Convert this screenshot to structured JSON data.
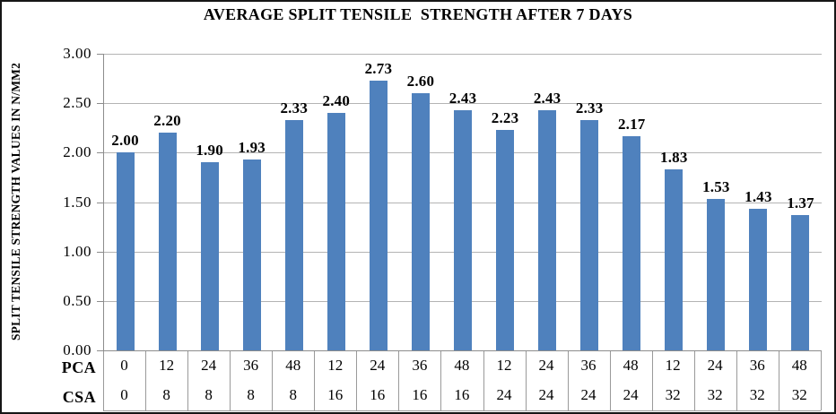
{
  "chart_data": {
    "type": "bar",
    "title": "AVERAGE SPLIT TENSILE  STRENGTH AFTER 7 DAYS",
    "xlabel": "",
    "ylabel": "SPLIT TENSILE STRENGTH VALUES IN N/MM2",
    "ylim": [
      0,
      3.0
    ],
    "grid": true,
    "legend": "none",
    "ytick_values": [
      0,
      0.5,
      1.0,
      1.5,
      2.0,
      2.5,
      3.0
    ],
    "ytick_labels": [
      "0.00",
      "0.50",
      "1.00",
      "1.50",
      "2.00",
      "2.50",
      "3.00"
    ],
    "values": [
      2.0,
      2.2,
      1.9,
      1.93,
      2.33,
      2.4,
      2.73,
      2.6,
      2.43,
      2.23,
      2.43,
      2.33,
      2.17,
      1.83,
      1.53,
      1.43,
      1.37
    ],
    "value_labels": [
      "2.00",
      "2.20",
      "1.90",
      "1.93",
      "2.33",
      "2.40",
      "2.73",
      "2.60",
      "2.43",
      "2.23",
      "2.43",
      "2.33",
      "2.17",
      "1.83",
      "1.53",
      "1.43",
      "1.37"
    ],
    "x_axis_rows": [
      {
        "label": "PCA",
        "values": [
          "0",
          "12",
          "24",
          "36",
          "48",
          "12",
          "24",
          "36",
          "48",
          "12",
          "24",
          "36",
          "48",
          "12",
          "24",
          "36",
          "48"
        ]
      },
      {
        "label": "CSA",
        "values": [
          "0",
          "8",
          "8",
          "8",
          "8",
          "16",
          "16",
          "16",
          "16",
          "24",
          "24",
          "24",
          "24",
          "32",
          "32",
          "32",
          "32"
        ]
      }
    ],
    "colors": {
      "bar": "#4F81BD",
      "gridline": "#b3b3b3",
      "axis": "#8c8c8c",
      "table_divider": "#9a9a9a",
      "text": "#000000"
    }
  }
}
